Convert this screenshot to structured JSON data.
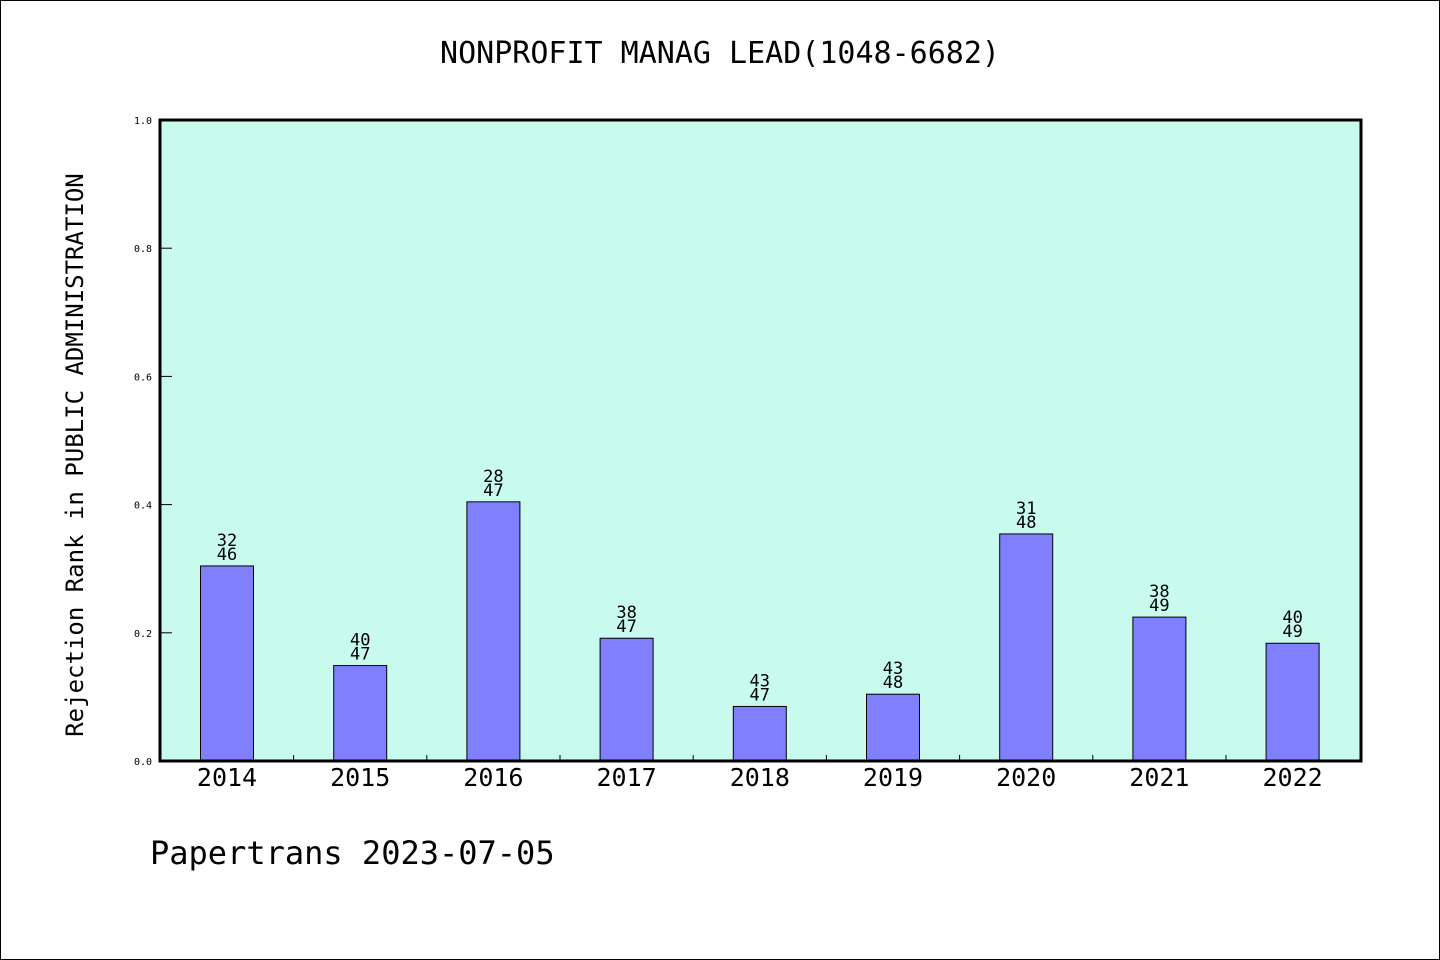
{
  "chart_data": {
    "type": "bar",
    "title": "NONPROFIT MANAG LEAD(1048-6682)",
    "ylabel": "Rejection Rank in PUBLIC ADMINISTRATION",
    "xlabel": "",
    "categories": [
      "2014",
      "2015",
      "2016",
      "2017",
      "2018",
      "2019",
      "2020",
      "2021",
      "2022"
    ],
    "values": [
      0.3043,
      0.1489,
      0.4043,
      0.1915,
      0.0851,
      0.1042,
      0.3542,
      0.2245,
      0.1837
    ],
    "bar_labels": [
      [
        "32",
        "46"
      ],
      [
        "40",
        "47"
      ],
      [
        "28",
        "47"
      ],
      [
        "38",
        "47"
      ],
      [
        "43",
        "47"
      ],
      [
        "43",
        "48"
      ],
      [
        "31",
        "48"
      ],
      [
        "38",
        "49"
      ],
      [
        "40",
        "49"
      ]
    ],
    "ylim": [
      0,
      1.0
    ],
    "yticks": [
      "0.0",
      "0.2",
      "0.4",
      "0.6",
      "0.8",
      "1.0"
    ],
    "grid": false,
    "colors": {
      "plot_bg": "#c8fbee",
      "bar": "#8080ff",
      "bar_edge": "#000000"
    }
  },
  "footer": "Papertrans 2023-07-05"
}
